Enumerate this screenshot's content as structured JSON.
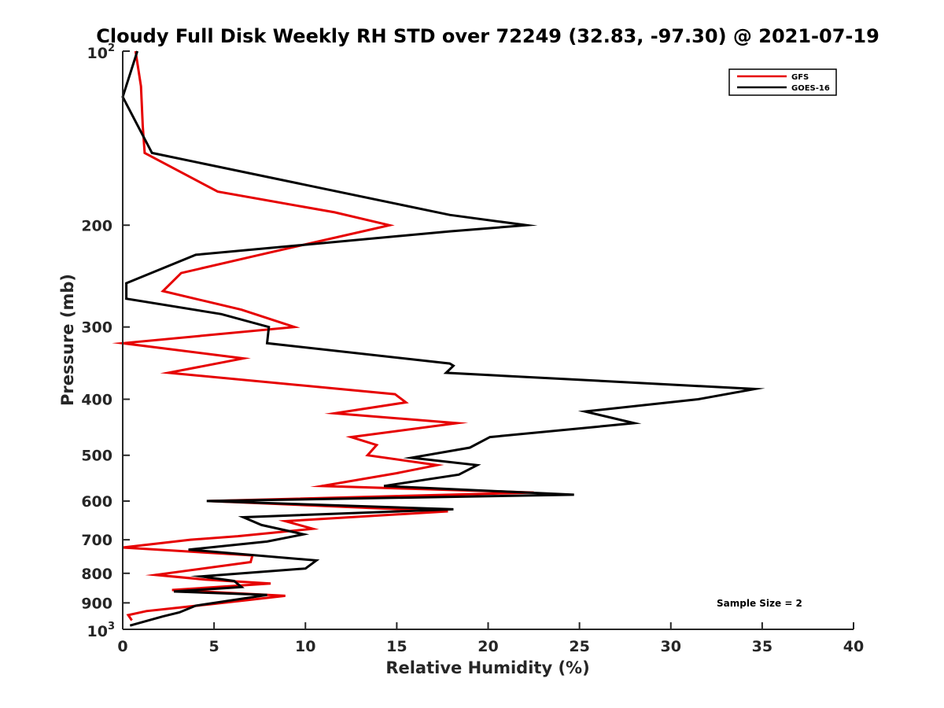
{
  "chart_data": {
    "type": "line",
    "title": "Cloudy Full Disk Weekly RH STD over 72249 (32.83, -97.30) @ 2021-07-19",
    "xlabel": "Relative Humidity (%)",
    "ylabel": "Pressure (mb)",
    "xlim": [
      0,
      40
    ],
    "ylim": [
      100,
      1000
    ],
    "y_scale": "log",
    "y_reversed": true,
    "x_ticks": [
      0,
      5,
      10,
      15,
      20,
      25,
      30,
      35,
      40
    ],
    "x_tick_labels": [
      "0",
      "5",
      "10",
      "15",
      "20",
      "25",
      "30",
      "35",
      "40"
    ],
    "y_ticks": [
      200,
      300,
      400,
      500,
      600,
      700,
      800,
      900
    ],
    "y_tick_labels": [
      "200",
      "300",
      "400",
      "500",
      "600",
      "700",
      "800",
      "900"
    ],
    "y_end_ticks": [
      {
        "value": 100,
        "base": "10",
        "exp": "2"
      },
      {
        "value": 1000,
        "base": "10",
        "exp": "3"
      }
    ],
    "grid": false,
    "legend_position": "top-right",
    "annotation": "Sample Size = 2",
    "series": [
      {
        "name": "GFS",
        "color": "#e60000",
        "points": [
          [
            0.7,
            100
          ],
          [
            1.0,
            115
          ],
          [
            1.1,
            135
          ],
          [
            1.2,
            150
          ],
          [
            5.2,
            175
          ],
          [
            11.6,
            190
          ],
          [
            14.6,
            200
          ],
          [
            7.5,
            225
          ],
          [
            3.2,
            242
          ],
          [
            2.2,
            260
          ],
          [
            6.5,
            280
          ],
          [
            9.4,
            300
          ],
          [
            0.0,
            320
          ],
          [
            6.6,
            340
          ],
          [
            2.5,
            360
          ],
          [
            14.9,
            392
          ],
          [
            15.5,
            405
          ],
          [
            11.6,
            423
          ],
          [
            18.3,
            440
          ],
          [
            12.5,
            465
          ],
          [
            13.9,
            480
          ],
          [
            13.4,
            500
          ],
          [
            17.2,
            520
          ],
          [
            15.0,
            537
          ],
          [
            10.9,
            565
          ],
          [
            22.5,
            580
          ],
          [
            4.7,
            600
          ],
          [
            17.8,
            625
          ],
          [
            8.9,
            650
          ],
          [
            10.4,
            670
          ],
          [
            6.3,
            690
          ],
          [
            3.7,
            700
          ],
          [
            0.0,
            722
          ],
          [
            7.1,
            745
          ],
          [
            7.0,
            765
          ],
          [
            1.8,
            805
          ],
          [
            4.5,
            820
          ],
          [
            8.1,
            833
          ],
          [
            2.7,
            855
          ],
          [
            8.9,
            875
          ],
          [
            4.8,
            905
          ],
          [
            1.3,
            930
          ],
          [
            0.3,
            945
          ],
          [
            0.5,
            965
          ]
        ]
      },
      {
        "name": "GOES-16",
        "color": "#000000",
        "points": [
          [
            0.8,
            100
          ],
          [
            0.0,
            120
          ],
          [
            1.6,
            150
          ],
          [
            17.9,
            192
          ],
          [
            22.1,
            200
          ],
          [
            17.9,
            205
          ],
          [
            4.0,
            225
          ],
          [
            0.2,
            252
          ],
          [
            0.2,
            268
          ],
          [
            5.4,
            285
          ],
          [
            8.0,
            300
          ],
          [
            7.9,
            320
          ],
          [
            17.9,
            347
          ],
          [
            18.1,
            350
          ],
          [
            17.7,
            360
          ],
          [
            34.6,
            384
          ],
          [
            31.5,
            400
          ],
          [
            25.3,
            420
          ],
          [
            28.0,
            440
          ],
          [
            20.1,
            465
          ],
          [
            19.0,
            485
          ],
          [
            15.8,
            505
          ],
          [
            19.4,
            520
          ],
          [
            18.4,
            540
          ],
          [
            14.3,
            565
          ],
          [
            24.7,
            585
          ],
          [
            4.6,
            600
          ],
          [
            18.1,
            620
          ],
          [
            6.6,
            640
          ],
          [
            7.6,
            660
          ],
          [
            9.9,
            685
          ],
          [
            7.9,
            705
          ],
          [
            3.6,
            728
          ],
          [
            10.6,
            760
          ],
          [
            10.0,
            785
          ],
          [
            4.3,
            810
          ],
          [
            6.1,
            825
          ],
          [
            6.5,
            845
          ],
          [
            2.8,
            860
          ],
          [
            7.9,
            872
          ],
          [
            4.0,
            910
          ],
          [
            3.1,
            935
          ],
          [
            2.2,
            950
          ],
          [
            0.4,
            985
          ]
        ]
      }
    ]
  }
}
